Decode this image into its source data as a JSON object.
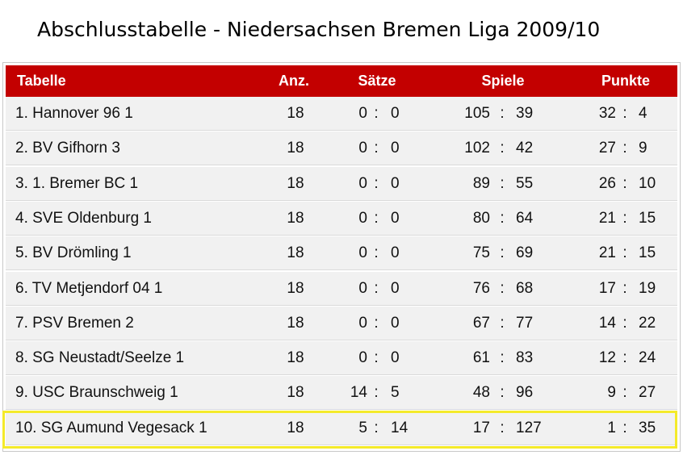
{
  "title": "Abschlusstabelle - Niedersachsen Bremen Liga 2009/10",
  "colors": {
    "header_bg": "#c30000",
    "row_bg": "#f1f1f1",
    "highlight": "#f4ea2a"
  },
  "columns": {
    "team": "Tabelle",
    "matches": "Anz.",
    "sets": "Sätze",
    "games": "Spiele",
    "points": "Punkte"
  },
  "rows": [
    {
      "team": "1. Hannover 96 1",
      "matches": "18",
      "sets_for": "0",
      "sets_against": "0",
      "games_for": "105",
      "games_against": "39",
      "points_for": "32",
      "points_against": "4"
    },
    {
      "team": "2. BV Gifhorn 3",
      "matches": "18",
      "sets_for": "0",
      "sets_against": "0",
      "games_for": "102",
      "games_against": "42",
      "points_for": "27",
      "points_against": "9"
    },
    {
      "team": "3. 1. Bremer BC 1",
      "matches": "18",
      "sets_for": "0",
      "sets_against": "0",
      "games_for": "89",
      "games_against": "55",
      "points_for": "26",
      "points_against": "10"
    },
    {
      "team": "4. SVE Oldenburg 1",
      "matches": "18",
      "sets_for": "0",
      "sets_against": "0",
      "games_for": "80",
      "games_against": "64",
      "points_for": "21",
      "points_against": "15"
    },
    {
      "team": "5. BV Drömling 1",
      "matches": "18",
      "sets_for": "0",
      "sets_against": "0",
      "games_for": "75",
      "games_against": "69",
      "points_for": "21",
      "points_against": "15"
    },
    {
      "team": "6. TV Metjendorf 04 1",
      "matches": "18",
      "sets_for": "0",
      "sets_against": "0",
      "games_for": "76",
      "games_against": "68",
      "points_for": "17",
      "points_against": "19"
    },
    {
      "team": "7. PSV Bremen 2",
      "matches": "18",
      "sets_for": "0",
      "sets_against": "0",
      "games_for": "67",
      "games_against": "77",
      "points_for": "14",
      "points_against": "22"
    },
    {
      "team": "8. SG Neustadt/Seelze 1",
      "matches": "18",
      "sets_for": "0",
      "sets_against": "0",
      "games_for": "61",
      "games_against": "83",
      "points_for": "12",
      "points_against": "24"
    },
    {
      "team": "9. USC Braunschweig 1",
      "matches": "18",
      "sets_for": "14",
      "sets_against": "5",
      "games_for": "48",
      "games_against": "96",
      "points_for": "9",
      "points_against": "27"
    },
    {
      "team": "10. SG Aumund Vegesack 1",
      "matches": "18",
      "sets_for": "5",
      "sets_against": "14",
      "games_for": "17",
      "games_against": "127",
      "points_for": "1",
      "points_against": "35"
    }
  ]
}
